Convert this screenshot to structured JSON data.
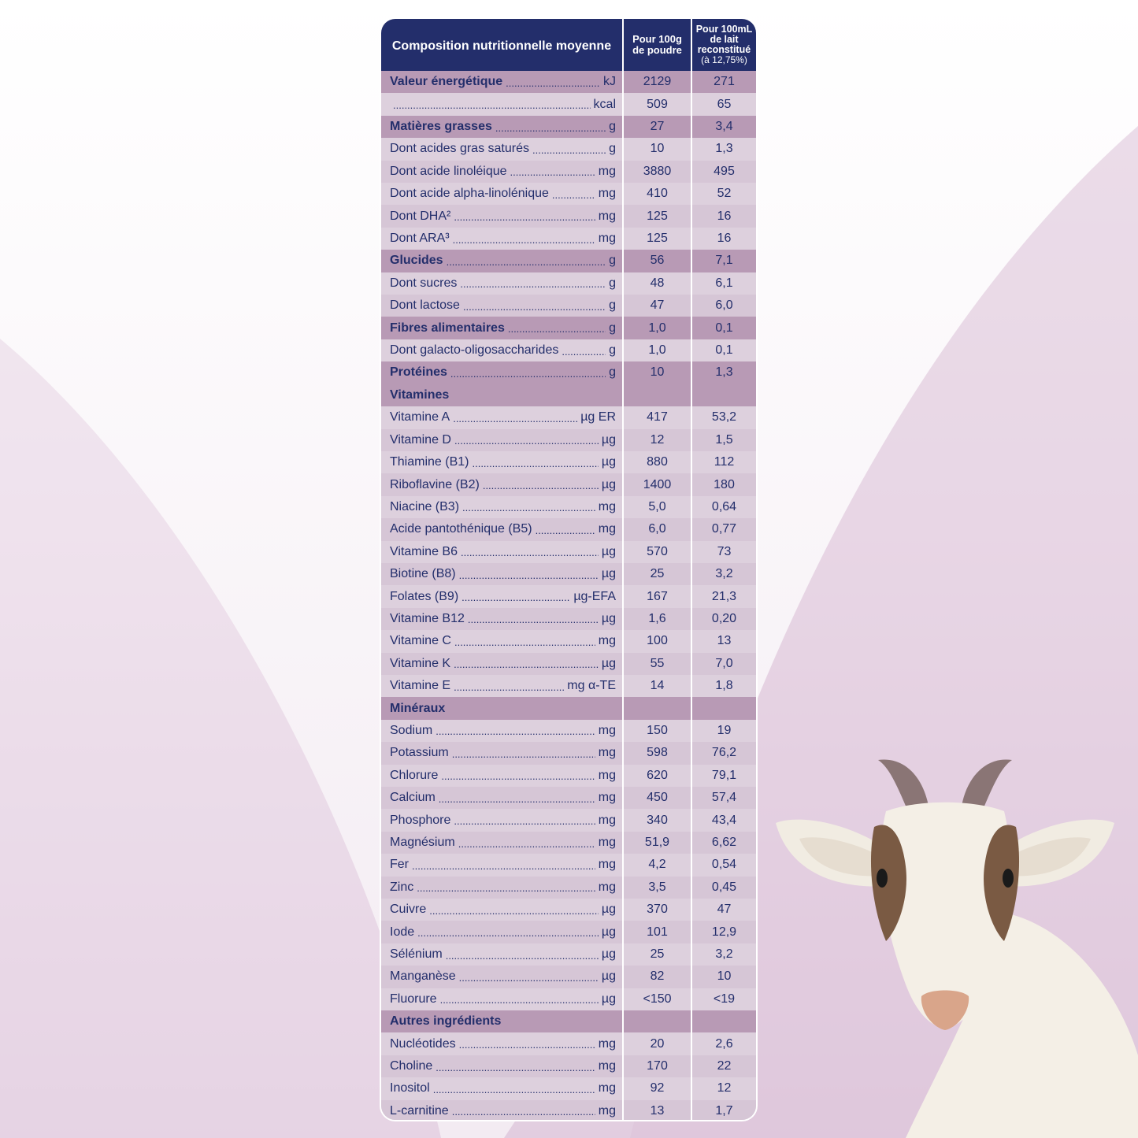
{
  "header": {
    "col1": "Composition nutritionnelle moyenne",
    "col2_line1": "Pour 100g",
    "col2_line2": "de poudre",
    "col3_line1": "Pour 100mL",
    "col3_line2": "de lait",
    "col3_line3": "reconstitué",
    "col3_line4": "(à 12,75%)"
  },
  "rows": [
    {
      "name": "Valeur énergétique",
      "unit": "kJ",
      "v1": "2129",
      "v2": "271",
      "type": "sect",
      "bold": true
    },
    {
      "name": "",
      "unit": "kcal",
      "v1": "509",
      "v2": "65",
      "type": "sub",
      "bold": false
    },
    {
      "name": "Matières grasses",
      "unit": "g",
      "v1": "27",
      "v2": "3,4",
      "type": "sect",
      "bold": true
    },
    {
      "name": "Dont acides gras saturés",
      "unit": "g",
      "v1": "10",
      "v2": "1,3",
      "type": "sub",
      "bold": false
    },
    {
      "name": "Dont acide linoléique",
      "unit": "mg",
      "v1": "3880",
      "v2": "495",
      "type": "sub",
      "bold": false
    },
    {
      "name": "Dont acide alpha-linolénique",
      "unit": "mg",
      "v1": "410",
      "v2": "52",
      "type": "sub",
      "bold": false
    },
    {
      "name": "Dont DHA²",
      "unit": "mg",
      "v1": "125",
      "v2": "16",
      "type": "sub",
      "bold": false
    },
    {
      "name": "Dont ARA³",
      "unit": "mg",
      "v1": "125",
      "v2": "16",
      "type": "sub",
      "bold": false
    },
    {
      "name": "Glucides",
      "unit": "g",
      "v1": "56",
      "v2": "7,1",
      "type": "sect",
      "bold": true
    },
    {
      "name": "Dont sucres",
      "unit": "g",
      "v1": "48",
      "v2": "6,1",
      "type": "sub",
      "bold": false
    },
    {
      "name": "Dont lactose",
      "unit": "g",
      "v1": "47",
      "v2": "6,0",
      "type": "sub",
      "bold": false
    },
    {
      "name": "Fibres alimentaires",
      "unit": "g",
      "v1": "1,0",
      "v2": "0,1",
      "type": "sect",
      "bold": true
    },
    {
      "name": "Dont galacto-oligosaccharides",
      "unit": "g",
      "v1": "1,0",
      "v2": "0,1",
      "type": "sub",
      "bold": false
    },
    {
      "name": "Protéines",
      "unit": "g",
      "v1": "10",
      "v2": "1,3",
      "type": "sect",
      "bold": true
    },
    {
      "name": "Vitamines",
      "unit": "",
      "v1": "",
      "v2": "",
      "type": "sect",
      "bold": true,
      "nodots": true
    },
    {
      "name": "Vitamine A",
      "unit": "µg ER",
      "v1": "417",
      "v2": "53,2",
      "type": "sub",
      "bold": false
    },
    {
      "name": "Vitamine D",
      "unit": "µg",
      "v1": "12",
      "v2": "1,5",
      "type": "sub",
      "bold": false
    },
    {
      "name": "Thiamine (B1)",
      "unit": "µg",
      "v1": "880",
      "v2": "112",
      "type": "sub",
      "bold": false
    },
    {
      "name": "Riboflavine (B2)",
      "unit": "µg",
      "v1": "1400",
      "v2": "180",
      "type": "sub",
      "bold": false
    },
    {
      "name": "Niacine (B3)",
      "unit": "mg",
      "v1": "5,0",
      "v2": "0,64",
      "type": "sub",
      "bold": false
    },
    {
      "name": "Acide pantothénique (B5)",
      "unit": "mg",
      "v1": "6,0",
      "v2": "0,77",
      "type": "sub",
      "bold": false
    },
    {
      "name": "Vitamine B6",
      "unit": "µg",
      "v1": "570",
      "v2": "73",
      "type": "sub",
      "bold": false
    },
    {
      "name": "Biotine (B8)",
      "unit": "µg",
      "v1": "25",
      "v2": "3,2",
      "type": "sub",
      "bold": false
    },
    {
      "name": "Folates (B9)",
      "unit": "µg-EFA",
      "v1": "167",
      "v2": "21,3",
      "type": "sub",
      "bold": false
    },
    {
      "name": "Vitamine B12",
      "unit": "µg",
      "v1": "1,6",
      "v2": "0,20",
      "type": "sub",
      "bold": false
    },
    {
      "name": "Vitamine C",
      "unit": "mg",
      "v1": "100",
      "v2": "13",
      "type": "sub",
      "bold": false
    },
    {
      "name": "Vitamine K",
      "unit": "µg",
      "v1": "55",
      "v2": "7,0",
      "type": "sub",
      "bold": false
    },
    {
      "name": "Vitamine E",
      "unit": "mg α-TE",
      "v1": "14",
      "v2": "1,8",
      "type": "sub",
      "bold": false
    },
    {
      "name": "Minéraux",
      "unit": "",
      "v1": "",
      "v2": "",
      "type": "sect",
      "bold": true,
      "nodots": true
    },
    {
      "name": "Sodium",
      "unit": "mg",
      "v1": "150",
      "v2": "19",
      "type": "sub",
      "bold": false
    },
    {
      "name": "Potassium",
      "unit": "mg",
      "v1": "598",
      "v2": "76,2",
      "type": "sub",
      "bold": false
    },
    {
      "name": "Chlorure",
      "unit": "mg",
      "v1": "620",
      "v2": "79,1",
      "type": "sub",
      "bold": false
    },
    {
      "name": "Calcium",
      "unit": "mg",
      "v1": "450",
      "v2": "57,4",
      "type": "sub",
      "bold": false
    },
    {
      "name": "Phosphore",
      "unit": "mg",
      "v1": "340",
      "v2": "43,4",
      "type": "sub",
      "bold": false
    },
    {
      "name": "Magnésium",
      "unit": "mg",
      "v1": "51,9",
      "v2": "6,62",
      "type": "sub",
      "bold": false
    },
    {
      "name": "Fer",
      "unit": "mg",
      "v1": "4,2",
      "v2": "0,54",
      "type": "sub",
      "bold": false
    },
    {
      "name": "Zinc",
      "unit": "mg",
      "v1": "3,5",
      "v2": "0,45",
      "type": "sub",
      "bold": false
    },
    {
      "name": "Cuivre",
      "unit": "µg",
      "v1": "370",
      "v2": "47",
      "type": "sub",
      "bold": false
    },
    {
      "name": "Iode",
      "unit": "µg",
      "v1": "101",
      "v2": "12,9",
      "type": "sub",
      "bold": false
    },
    {
      "name": "Sélénium",
      "unit": "µg",
      "v1": "25",
      "v2": "3,2",
      "type": "sub",
      "bold": false
    },
    {
      "name": "Manganèse",
      "unit": "µg",
      "v1": "82",
      "v2": "10",
      "type": "sub",
      "bold": false
    },
    {
      "name": "Fluorure",
      "unit": "µg",
      "v1": "<150",
      "v2": "<19",
      "type": "sub",
      "bold": false
    },
    {
      "name": "Autres ingrédients",
      "unit": "",
      "v1": "",
      "v2": "",
      "type": "sect",
      "bold": true,
      "nodots": true
    },
    {
      "name": "Nucléotides",
      "unit": "mg",
      "v1": "20",
      "v2": "2,6",
      "type": "sub",
      "bold": false
    },
    {
      "name": "Choline",
      "unit": "mg",
      "v1": "170",
      "v2": "22",
      "type": "sub",
      "bold": false
    },
    {
      "name": "Inositol",
      "unit": "mg",
      "v1": "92",
      "v2": "12",
      "type": "sub",
      "bold": false
    },
    {
      "name": "L-carnitine",
      "unit": "mg",
      "v1": "13",
      "v2": "1,7",
      "type": "sub",
      "bold": false
    }
  ],
  "colors": {
    "header_bg": "#232e6b",
    "section_bg": "#b89ab5",
    "row_bg": "#ddd0dd",
    "text": "#232e6b"
  },
  "illustration": "goat-icon"
}
